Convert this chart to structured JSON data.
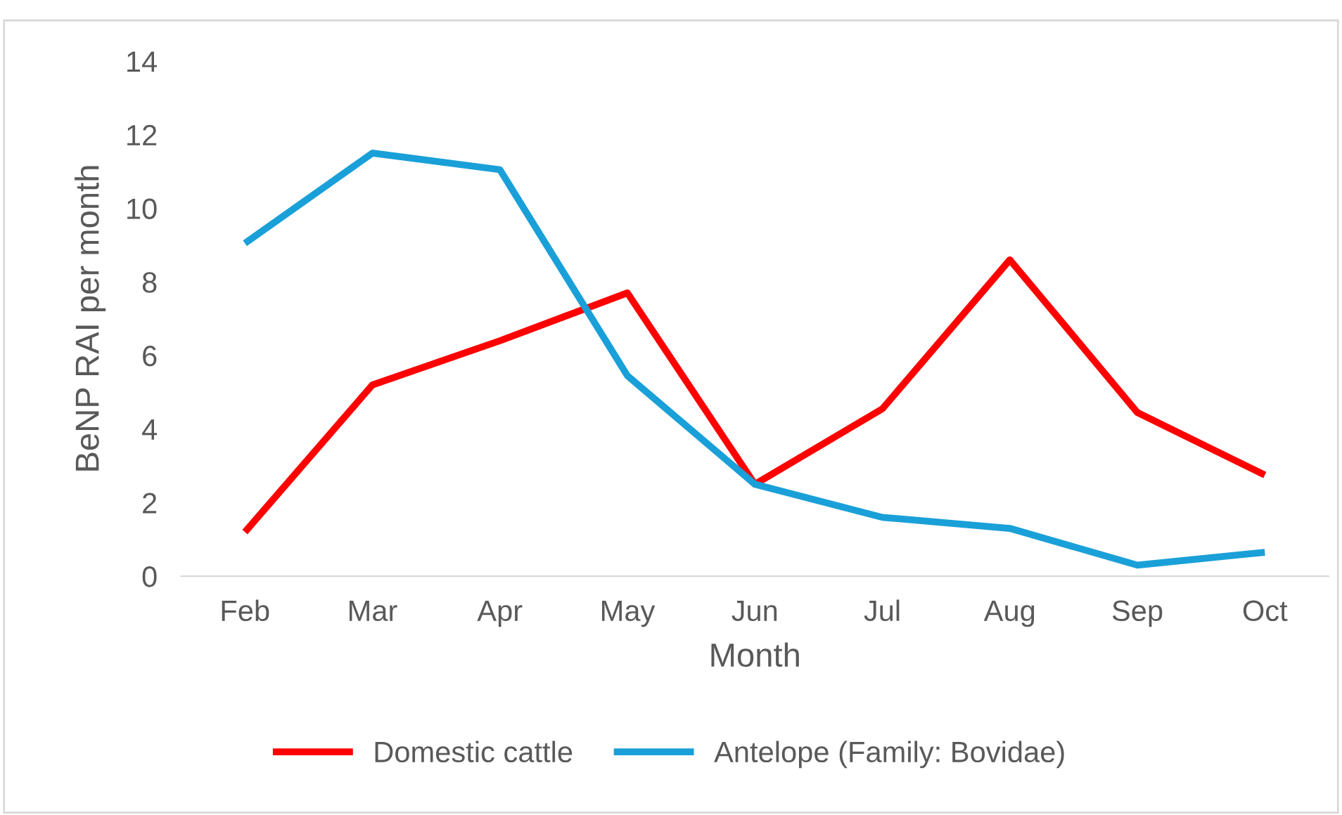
{
  "chart_data": {
    "type": "line",
    "xlabel": "Month",
    "ylabel": "BeNP RAI per month",
    "categories": [
      "Feb",
      "Mar",
      "Apr",
      "May",
      "Jun",
      "Jul",
      "Aug",
      "Sep",
      "Oct"
    ],
    "series": [
      {
        "name": "Domestic cattle",
        "color": "#ff0000",
        "values": [
          1.2,
          5.2,
          6.4,
          7.7,
          2.5,
          4.55,
          8.6,
          4.45,
          2.75
        ]
      },
      {
        "name": "Antelope (Family: Bovidae)",
        "color": "#1aa0d8",
        "values": [
          9.05,
          11.5,
          11.05,
          5.45,
          2.5,
          1.6,
          1.3,
          0.3,
          0.65
        ]
      }
    ],
    "ylim": [
      0,
      14
    ],
    "yticks": [
      0,
      2,
      4,
      6,
      8,
      10,
      12,
      14
    ],
    "grid": false,
    "legend": "bottom",
    "marker": "none",
    "line_style": "solid"
  }
}
